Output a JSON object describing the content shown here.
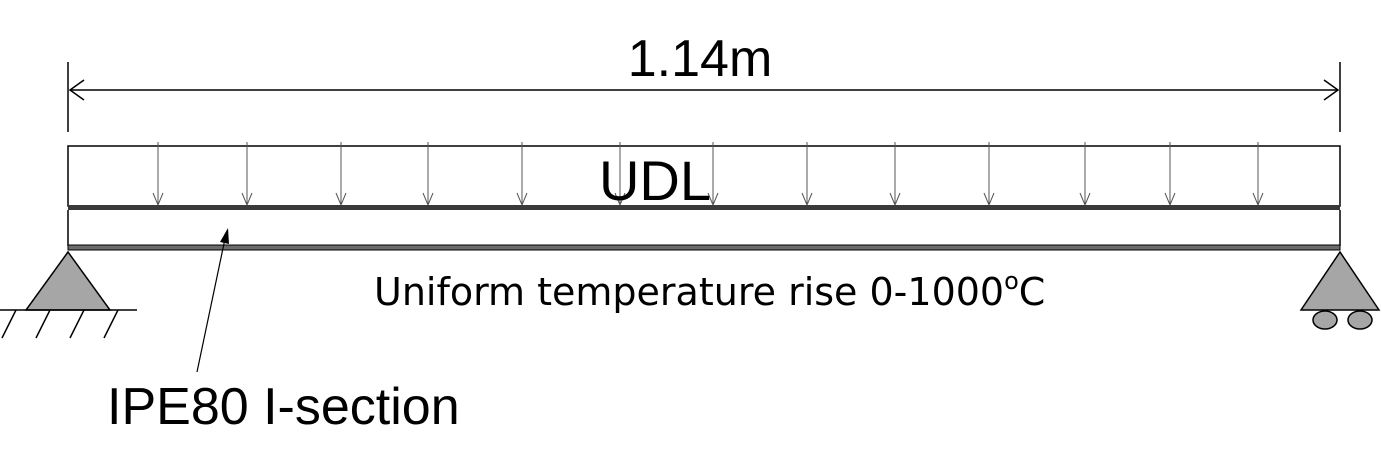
{
  "dimension": {
    "label": "1.14m"
  },
  "load": {
    "label": "UDL"
  },
  "temperature": {
    "prefix": "Uniform temperature rise 0-1000",
    "degree": "o",
    "unit": "C"
  },
  "section": {
    "label": "IPE80 I-section"
  },
  "supports": {
    "left": "pinned",
    "right": "roller"
  },
  "colors": {
    "support_fill": "#a6a6a6",
    "beam_flange": "#3a3a3a",
    "line": "#000000"
  }
}
